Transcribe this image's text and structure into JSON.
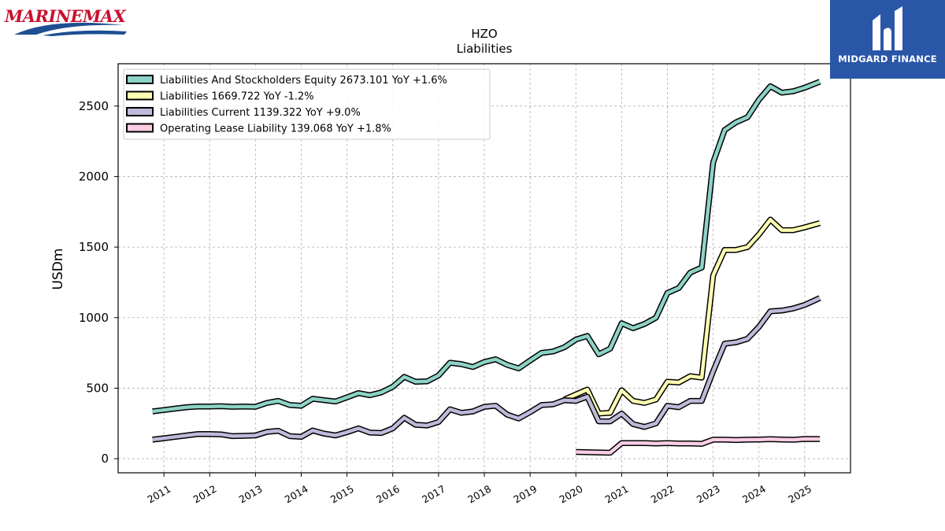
{
  "logos": {
    "left_brand": "MARINEMAX",
    "right_brand": "MIDGARD FINANCE",
    "colors": {
      "left_red": "#c8102e",
      "left_blue": "#1d4f91",
      "right_bg": "#2a56a8"
    }
  },
  "chart_data": {
    "type": "line",
    "title": "HZO",
    "subtitle": "Liabilities",
    "xlabel": "",
    "ylabel": "USDm",
    "xlim": [
      2010.0,
      2026.0
    ],
    "ylim": [
      -100,
      2800
    ],
    "x_ticks": [
      "2011",
      "2012",
      "2013",
      "2014",
      "2015",
      "2016",
      "2017",
      "2018",
      "2019",
      "2020",
      "2021",
      "2022",
      "2023",
      "2024",
      "2025"
    ],
    "y_ticks": [
      "0",
      "500",
      "1000",
      "1500",
      "2000",
      "2500"
    ],
    "grid": true,
    "legend_position": "top-left",
    "series": [
      {
        "name": "Liabilities And Stockholders Equity  2673.101 YoY +1.6%",
        "color": "#8dd3c7",
        "x": [
          2010.75,
          2011.0,
          2011.25,
          2011.5,
          2011.75,
          2012.0,
          2012.25,
          2012.5,
          2012.75,
          2013.0,
          2013.25,
          2013.5,
          2013.75,
          2014.0,
          2014.25,
          2014.5,
          2014.75,
          2015.0,
          2015.25,
          2015.5,
          2015.75,
          2016.0,
          2016.25,
          2016.5,
          2016.75,
          2017.0,
          2017.25,
          2017.5,
          2017.75,
          2018.0,
          2018.25,
          2018.5,
          2018.75,
          2019.0,
          2019.25,
          2019.5,
          2019.75,
          2020.0,
          2020.25,
          2020.5,
          2020.75,
          2021.0,
          2021.25,
          2021.5,
          2021.75,
          2022.0,
          2022.25,
          2022.5,
          2022.75,
          2023.0,
          2023.25,
          2023.5,
          2023.75,
          2024.0,
          2024.25,
          2024.5,
          2024.75,
          2025.0,
          2025.33
        ],
        "y": [
          335,
          345,
          355,
          365,
          370,
          370,
          372,
          368,
          370,
          368,
          395,
          410,
          380,
          375,
          425,
          415,
          405,
          435,
          465,
          450,
          470,
          510,
          580,
          545,
          548,
          590,
          680,
          670,
          650,
          685,
          705,
          665,
          640,
          695,
          750,
          760,
          790,
          845,
          870,
          740,
          780,
          960,
          925,
          955,
          1000,
          1175,
          1210,
          1320,
          1355,
          2100,
          2330,
          2385,
          2420,
          2545,
          2640,
          2595,
          2605,
          2630,
          2673
        ]
      },
      {
        "name": "Liabilities  1669.722 YoY -1.2%",
        "color": "#ffffb3",
        "x": [
          2019.75,
          2020.0,
          2020.25,
          2020.5,
          2020.75,
          2021.0,
          2021.25,
          2021.5,
          2021.75,
          2022.0,
          2022.25,
          2022.5,
          2022.75,
          2023.0,
          2023.25,
          2023.5,
          2023.75,
          2024.0,
          2024.25,
          2024.5,
          2024.75,
          2025.0,
          2025.33
        ],
        "y": [
          420,
          455,
          490,
          320,
          325,
          485,
          410,
          395,
          420,
          545,
          540,
          585,
          575,
          1300,
          1480,
          1480,
          1500,
          1590,
          1695,
          1620,
          1620,
          1640,
          1670
        ]
      },
      {
        "name": "Liabilities Current  1139.322 YoY +9.0%",
        "color": "#bebada",
        "x": [
          2010.75,
          2011.0,
          2011.25,
          2011.5,
          2011.75,
          2012.0,
          2012.25,
          2012.5,
          2012.75,
          2013.0,
          2013.25,
          2013.5,
          2013.75,
          2014.0,
          2014.25,
          2014.5,
          2014.75,
          2015.0,
          2015.25,
          2015.5,
          2015.75,
          2016.0,
          2016.25,
          2016.5,
          2016.75,
          2017.0,
          2017.25,
          2017.5,
          2017.75,
          2018.0,
          2018.25,
          2018.5,
          2018.75,
          2019.0,
          2019.25,
          2019.5,
          2019.75,
          2020.0,
          2020.25,
          2020.5,
          2020.75,
          2021.0,
          2021.25,
          2021.5,
          2021.75,
          2022.0,
          2022.25,
          2022.5,
          2022.75,
          2023.0,
          2023.25,
          2023.5,
          2023.75,
          2024.0,
          2024.25,
          2024.5,
          2024.75,
          2025.0,
          2025.33
        ],
        "y": [
          135,
          145,
          155,
          165,
          175,
          175,
          172,
          160,
          162,
          165,
          190,
          198,
          160,
          155,
          200,
          178,
          165,
          188,
          215,
          185,
          182,
          215,
          290,
          240,
          235,
          260,
          350,
          325,
          335,
          368,
          375,
          312,
          285,
          330,
          380,
          385,
          415,
          410,
          440,
          265,
          265,
          320,
          245,
          225,
          250,
          375,
          365,
          410,
          410,
          620,
          815,
          825,
          850,
          935,
          1045,
          1050,
          1065,
          1090,
          1139
        ]
      },
      {
        "name": "Operating Lease Liability  139.068 YoY +1.8%",
        "color": "#fccde5",
        "x": [
          2020.0,
          2020.75,
          2021.0,
          2021.25,
          2021.5,
          2021.75,
          2022.0,
          2022.25,
          2022.5,
          2022.75,
          2023.0,
          2023.25,
          2023.5,
          2023.75,
          2024.0,
          2024.25,
          2024.5,
          2024.75,
          2025.0,
          2025.33
        ],
        "y": [
          48,
          42,
          110,
          110,
          110,
          108,
          110,
          108,
          108,
          105,
          135,
          135,
          132,
          135,
          136,
          138,
          136,
          134,
          140,
          139
        ]
      }
    ]
  }
}
